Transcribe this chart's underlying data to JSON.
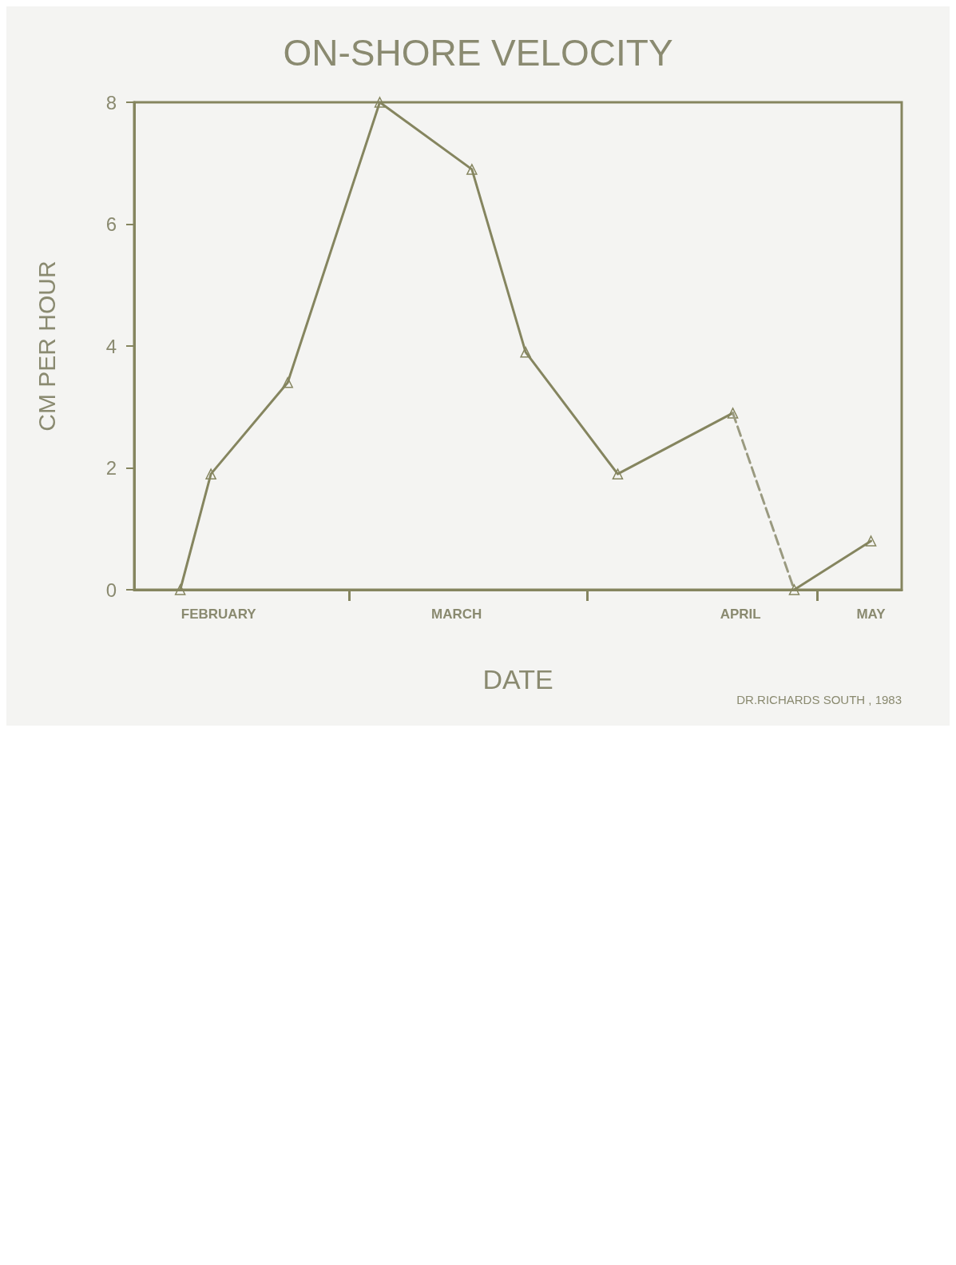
{
  "chart_data": {
    "type": "line",
    "title": "ON-SHORE VELOCITY",
    "xlabel": "DATE",
    "ylabel": "CM PER HOUR",
    "xlim": [
      "--02-01",
      "--05-12"
    ],
    "xticks": [
      {
        "value": "--03-01",
        "label": null
      },
      {
        "value": "--04-01",
        "label": null
      },
      {
        "value": "--05-01",
        "label": null
      },
      {
        "value": "--02-12",
        "label": "FEBRUARY"
      },
      {
        "value": "--03-15",
        "label": "MARCH"
      },
      {
        "value": "--04-21",
        "label": "APRIL"
      },
      {
        "value": "--05-08",
        "label": "MAY"
      }
    ],
    "ylim": [
      0,
      8
    ],
    "yticks": [
      0,
      2,
      4,
      6,
      8
    ],
    "grid": false,
    "marker": "triangle",
    "series": [
      {
        "color": "#85855f",
        "line_style": "solid",
        "x": [
          "--02-07",
          "--02-11",
          "--02-21",
          "--03-05",
          "--03-17",
          "--03-24",
          "--04-05",
          "--04-20"
        ],
        "values": [
          0,
          1.9,
          3.4,
          8.0,
          6.9,
          3.9,
          1.9,
          2.9
        ]
      },
      {
        "color": "#9a9a80",
        "line_style": "dashed",
        "marker": "none",
        "x": [
          "--04-20",
          "--04-28"
        ],
        "values": [
          2.9,
          0
        ]
      },
      {
        "color": "#85855f",
        "line_style": "solid",
        "x": [
          "--04-28",
          "--05-08"
        ],
        "values": [
          0,
          0.8
        ]
      }
    ],
    "annotations": [
      "DR.RICHARDS SOUTH , 1983"
    ]
  }
}
